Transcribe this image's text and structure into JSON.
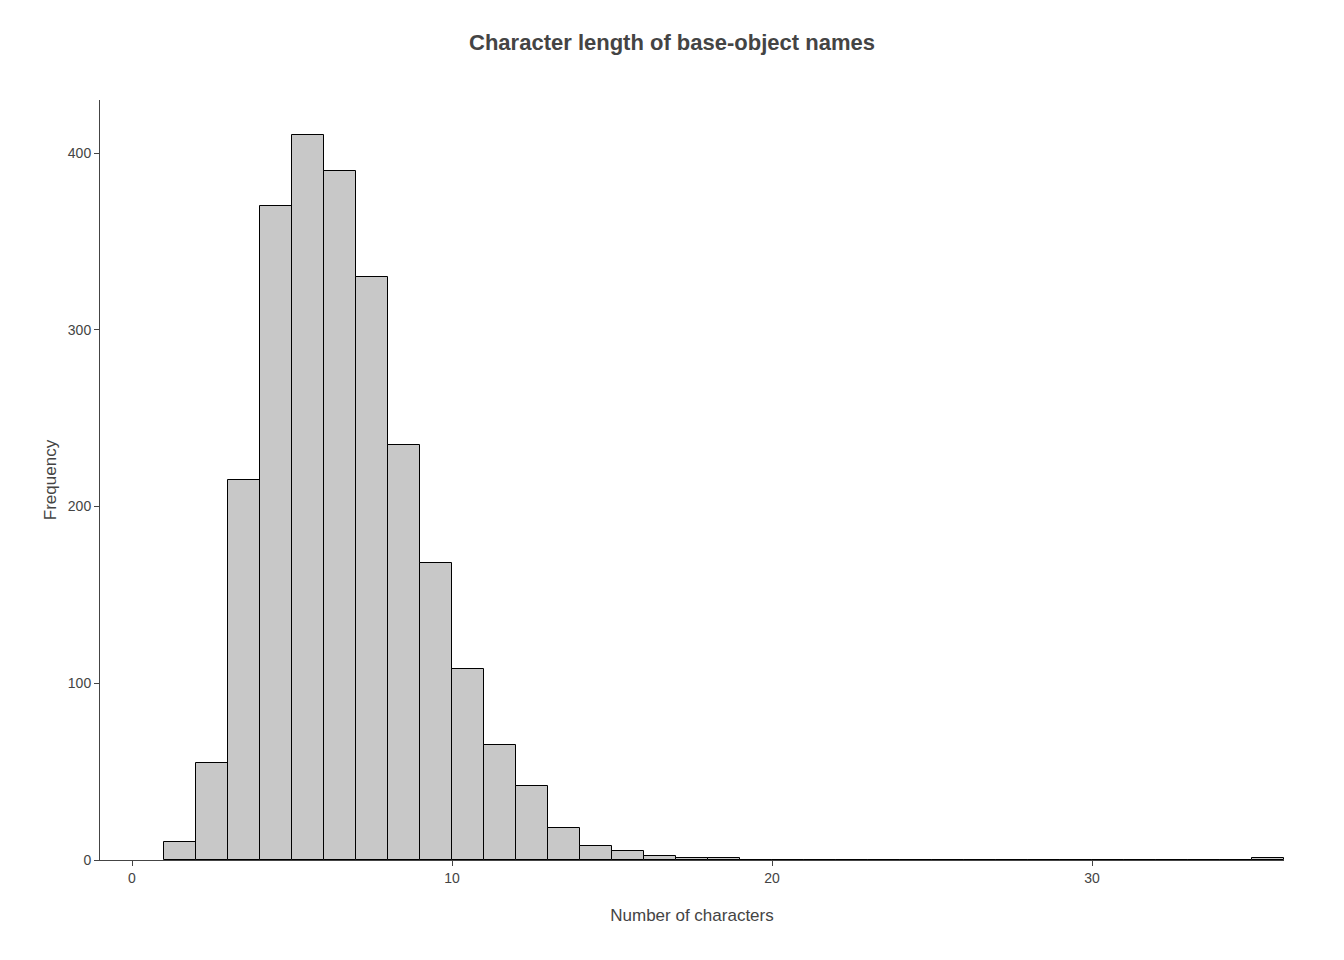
{
  "chart_data": {
    "type": "histogram",
    "title": "Character length of base-object names",
    "xlabel": "Number of characters",
    "ylabel": "Frequency",
    "bins": [
      1,
      2,
      3,
      4,
      5,
      6,
      7,
      8,
      9,
      10,
      11,
      12,
      13,
      14,
      15,
      16,
      17,
      18,
      19,
      20,
      21,
      22,
      23,
      24,
      25,
      26,
      27,
      28,
      29,
      30,
      31,
      32,
      33,
      34,
      35,
      36
    ],
    "values": [
      10,
      55,
      215,
      370,
      410,
      390,
      330,
      235,
      168,
      108,
      65,
      42,
      18,
      8,
      5,
      2,
      1,
      1,
      0,
      0,
      0,
      0,
      0,
      0,
      0,
      0,
      0,
      0,
      0,
      0,
      0,
      0,
      0,
      0,
      1
    ],
    "color": "#c8c8c8",
    "xlim": [
      -1,
      36
    ],
    "ylim": [
      0,
      430
    ],
    "xticks": [
      0,
      10,
      20,
      30
    ],
    "yticks": [
      0,
      100,
      200,
      300,
      400
    ],
    "grid": false
  }
}
